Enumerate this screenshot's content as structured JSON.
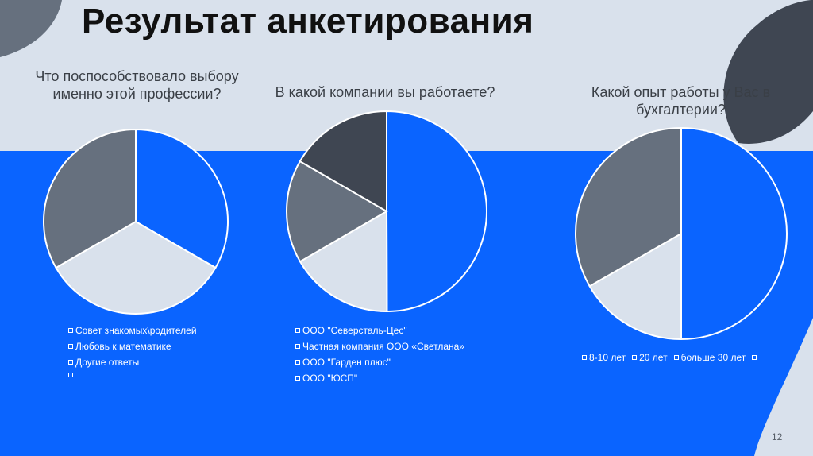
{
  "slide": {
    "title": "Результат анкетирования",
    "page_number": "12"
  },
  "colors": {
    "background": "#d9e1ec",
    "band": "#0a64ff",
    "blue": "#0a64ff",
    "light": "#d9e1ec",
    "gray": "#66707e",
    "dark": "#3f4652"
  },
  "chart_data": [
    {
      "type": "pie",
      "title": "Что поспособствовало выбору именно этой профессии?",
      "slices": [
        {
          "label": "Совет знакомых\\родителей",
          "value": 33.3,
          "color": "#0a64ff"
        },
        {
          "label": "Любовь к математике",
          "value": 33.3,
          "color": "#d9e1ec"
        },
        {
          "label": "Другие ответы",
          "value": 33.3,
          "color": "#66707e"
        }
      ],
      "legend": [
        "Совет знакомых\\родителей",
        "Любовь к математике",
        "Другие ответы",
        ""
      ],
      "legend_position": "bottom"
    },
    {
      "type": "pie",
      "title": "В какой компании вы работаете?",
      "slices": [
        {
          "label": "ООО \"Северсталь-Цес\"",
          "value": 50,
          "color": "#0a64ff"
        },
        {
          "label": "Частная компания ООО «Светлана»",
          "value": 16.7,
          "color": "#d9e1ec"
        },
        {
          "label": "ООО \"Гарден плюс\"",
          "value": 16.7,
          "color": "#66707e"
        },
        {
          "label": "ООО \"ЮСП\"",
          "value": 16.7,
          "color": "#3f4652"
        }
      ],
      "legend": [
        "ООО \"Северсталь-Цес\"",
        "Частная компания ООО «Светлана»",
        "ООО \"Гарден плюс\"",
        "ООО \"ЮСП\""
      ],
      "legend_position": "bottom"
    },
    {
      "type": "pie",
      "title": "Какой опыт работы у Вас в бухгалтерии?",
      "slices": [
        {
          "label": "8-10 лет",
          "value": 50,
          "color": "#0a64ff"
        },
        {
          "label": "20 лет",
          "value": 16.7,
          "color": "#d9e1ec"
        },
        {
          "label": "больше 30 лет",
          "value": 33.3,
          "color": "#66707e"
        }
      ],
      "legend": [
        "8-10 лет",
        "20 лет",
        "больше 30 лет",
        ""
      ],
      "legend_position": "bottom"
    }
  ]
}
